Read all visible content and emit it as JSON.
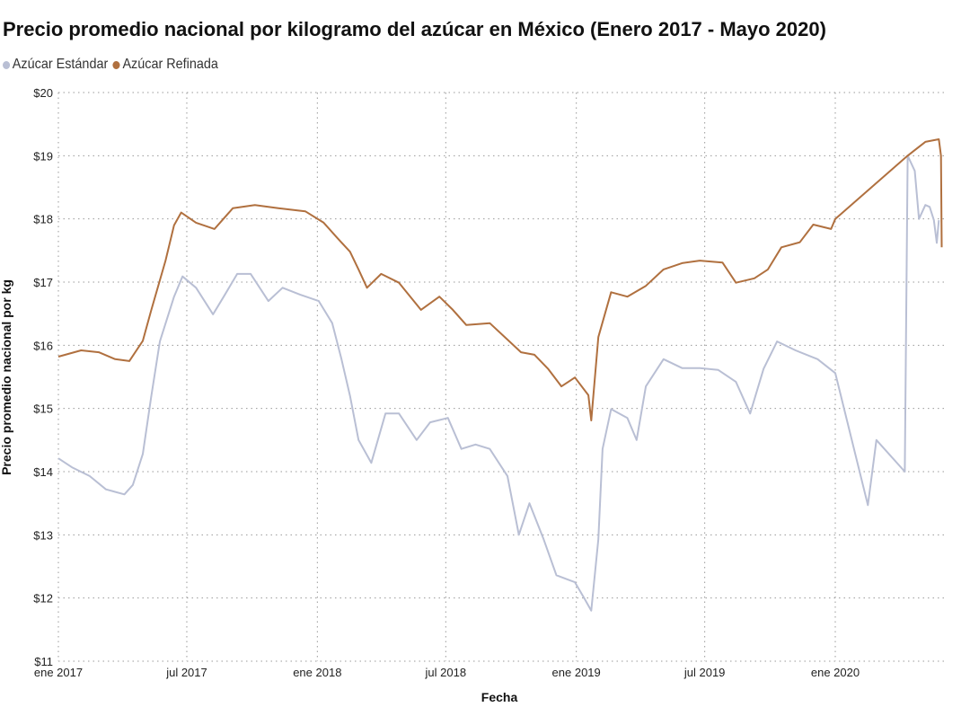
{
  "chart_data": {
    "type": "line",
    "title": "Precio promedio nacional por kilogramo del azúcar en México (Enero 2017 - Mayo 2020)",
    "xlabel": "Fecha",
    "ylabel": "Precio promedio nacional por kg",
    "ylim": [
      11,
      20
    ],
    "xlim": [
      "2017-01-01",
      "2020-05-31"
    ],
    "y_ticks": [
      20,
      19,
      18,
      17,
      16,
      15,
      14,
      13,
      12,
      11
    ],
    "y_tick_labels": [
      "$20",
      "$19",
      "$18",
      "$17",
      "$16",
      "$15",
      "$14",
      "$13",
      "$12",
      "$11"
    ],
    "x_ticks": [
      "2017-01-01",
      "2017-07-01",
      "2018-01-01",
      "2018-07-01",
      "2019-01-01",
      "2019-07-01",
      "2020-01-01"
    ],
    "x_tick_labels": [
      "ene 2017",
      "jul 2017",
      "ene 2018",
      "jul 2018",
      "ene 2019",
      "jul 2019",
      "ene 2020"
    ],
    "grid": true,
    "legend_position": "top-left",
    "series": [
      {
        "name": "Azúcar Estándar",
        "color": "#b9bfd4",
        "points": [
          [
            "2017-01-01",
            14.21
          ],
          [
            "2017-01-20",
            14.07
          ],
          [
            "2017-02-14",
            13.93
          ],
          [
            "2017-03-09",
            13.72
          ],
          [
            "2017-04-04",
            13.64
          ],
          [
            "2017-04-16",
            13.79
          ],
          [
            "2017-04-30",
            14.28
          ],
          [
            "2017-05-12",
            15.2
          ],
          [
            "2017-05-24",
            16.06
          ],
          [
            "2017-06-13",
            16.77
          ],
          [
            "2017-06-25",
            17.09
          ],
          [
            "2017-07-14",
            16.91
          ],
          [
            "2017-08-07",
            16.49
          ],
          [
            "2017-08-22",
            16.77
          ],
          [
            "2017-09-10",
            17.13
          ],
          [
            "2017-09-29",
            17.13
          ],
          [
            "2017-10-24",
            16.7
          ],
          [
            "2017-11-13",
            16.91
          ],
          [
            "2017-12-08",
            16.8
          ],
          [
            "2018-01-03",
            16.7
          ],
          [
            "2018-01-22",
            16.35
          ],
          [
            "2018-02-04",
            15.78
          ],
          [
            "2018-02-16",
            15.2
          ],
          [
            "2018-02-28",
            14.5
          ],
          [
            "2018-03-18",
            14.14
          ],
          [
            "2018-04-07",
            14.92
          ],
          [
            "2018-04-26",
            14.92
          ],
          [
            "2018-05-21",
            14.5
          ],
          [
            "2018-06-09",
            14.78
          ],
          [
            "2018-07-04",
            14.85
          ],
          [
            "2018-07-23",
            14.36
          ],
          [
            "2018-08-12",
            14.43
          ],
          [
            "2018-09-01",
            14.36
          ],
          [
            "2018-09-26",
            13.93
          ],
          [
            "2018-10-12",
            13.0
          ],
          [
            "2018-10-27",
            13.5
          ],
          [
            "2018-11-16",
            12.93
          ],
          [
            "2018-12-04",
            12.36
          ],
          [
            "2018-12-30",
            12.25
          ],
          [
            "2019-01-12",
            12.0
          ],
          [
            "2019-01-22",
            11.8
          ],
          [
            "2019-02-01",
            12.93
          ],
          [
            "2019-02-07",
            14.36
          ],
          [
            "2019-02-19",
            14.99
          ],
          [
            "2019-03-14",
            14.85
          ],
          [
            "2019-03-27",
            14.5
          ],
          [
            "2019-04-09",
            15.35
          ],
          [
            "2019-05-04",
            15.78
          ],
          [
            "2019-05-30",
            15.64
          ],
          [
            "2019-06-24",
            15.64
          ],
          [
            "2019-07-20",
            15.61
          ],
          [
            "2019-08-14",
            15.42
          ],
          [
            "2019-09-03",
            14.92
          ],
          [
            "2019-09-22",
            15.63
          ],
          [
            "2019-10-11",
            16.06
          ],
          [
            "2019-11-06",
            15.92
          ],
          [
            "2019-12-07",
            15.78
          ],
          [
            "2020-01-01",
            15.56
          ],
          [
            "2020-02-16",
            13.47
          ],
          [
            "2020-02-28",
            14.5
          ],
          [
            "2020-04-08",
            14.0
          ],
          [
            "2020-04-12",
            19.0
          ],
          [
            "2020-04-22",
            18.76
          ],
          [
            "2020-04-28",
            18.0
          ],
          [
            "2020-05-07",
            18.22
          ],
          [
            "2020-05-13",
            18.19
          ],
          [
            "2020-05-19",
            17.98
          ],
          [
            "2020-05-23",
            17.62
          ],
          [
            "2020-05-26",
            17.98
          ]
        ]
      },
      {
        "name": "Azúcar Refinada",
        "color": "#b0703f",
        "points": [
          [
            "2017-01-01",
            15.82
          ],
          [
            "2017-02-02",
            15.92
          ],
          [
            "2017-02-27",
            15.89
          ],
          [
            "2017-03-22",
            15.78
          ],
          [
            "2017-04-11",
            15.75
          ],
          [
            "2017-04-30",
            16.07
          ],
          [
            "2017-05-12",
            16.56
          ],
          [
            "2017-06-01",
            17.34
          ],
          [
            "2017-06-13",
            17.9
          ],
          [
            "2017-06-23",
            18.1
          ],
          [
            "2017-07-14",
            17.94
          ],
          [
            "2017-08-09",
            17.84
          ],
          [
            "2017-09-04",
            18.17
          ],
          [
            "2017-10-05",
            18.22
          ],
          [
            "2017-11-07",
            18.17
          ],
          [
            "2017-12-15",
            18.12
          ],
          [
            "2018-01-10",
            17.94
          ],
          [
            "2018-01-29",
            17.7
          ],
          [
            "2018-02-16",
            17.48
          ],
          [
            "2018-02-28",
            17.2
          ],
          [
            "2018-03-12",
            16.91
          ],
          [
            "2018-04-01",
            17.13
          ],
          [
            "2018-04-26",
            16.99
          ],
          [
            "2018-05-27",
            16.56
          ],
          [
            "2018-06-22",
            16.77
          ],
          [
            "2018-07-11",
            16.56
          ],
          [
            "2018-07-30",
            16.32
          ],
          [
            "2018-09-01",
            16.35
          ],
          [
            "2018-09-26",
            16.09
          ],
          [
            "2018-10-15",
            15.89
          ],
          [
            "2018-11-03",
            15.85
          ],
          [
            "2018-11-22",
            15.63
          ],
          [
            "2018-12-11",
            15.35
          ],
          [
            "2018-12-30",
            15.49
          ],
          [
            "2019-01-18",
            15.21
          ],
          [
            "2019-01-22",
            14.81
          ],
          [
            "2019-02-01",
            16.13
          ],
          [
            "2019-02-19",
            16.84
          ],
          [
            "2019-03-14",
            16.77
          ],
          [
            "2019-04-09",
            16.94
          ],
          [
            "2019-05-04",
            17.2
          ],
          [
            "2019-05-30",
            17.3
          ],
          [
            "2019-06-24",
            17.34
          ],
          [
            "2019-07-26",
            17.31
          ],
          [
            "2019-08-14",
            16.99
          ],
          [
            "2019-09-09",
            17.06
          ],
          [
            "2019-09-28",
            17.2
          ],
          [
            "2019-10-17",
            17.55
          ],
          [
            "2019-11-12",
            17.63
          ],
          [
            "2019-12-01",
            17.91
          ],
          [
            "2019-12-26",
            17.84
          ],
          [
            "2020-01-01",
            18.0
          ],
          [
            "2020-04-12",
            19.0
          ],
          [
            "2020-05-07",
            19.22
          ],
          [
            "2020-05-26",
            19.26
          ],
          [
            "2020-05-29",
            19.0
          ],
          [
            "2020-05-30",
            17.55
          ]
        ]
      }
    ]
  }
}
